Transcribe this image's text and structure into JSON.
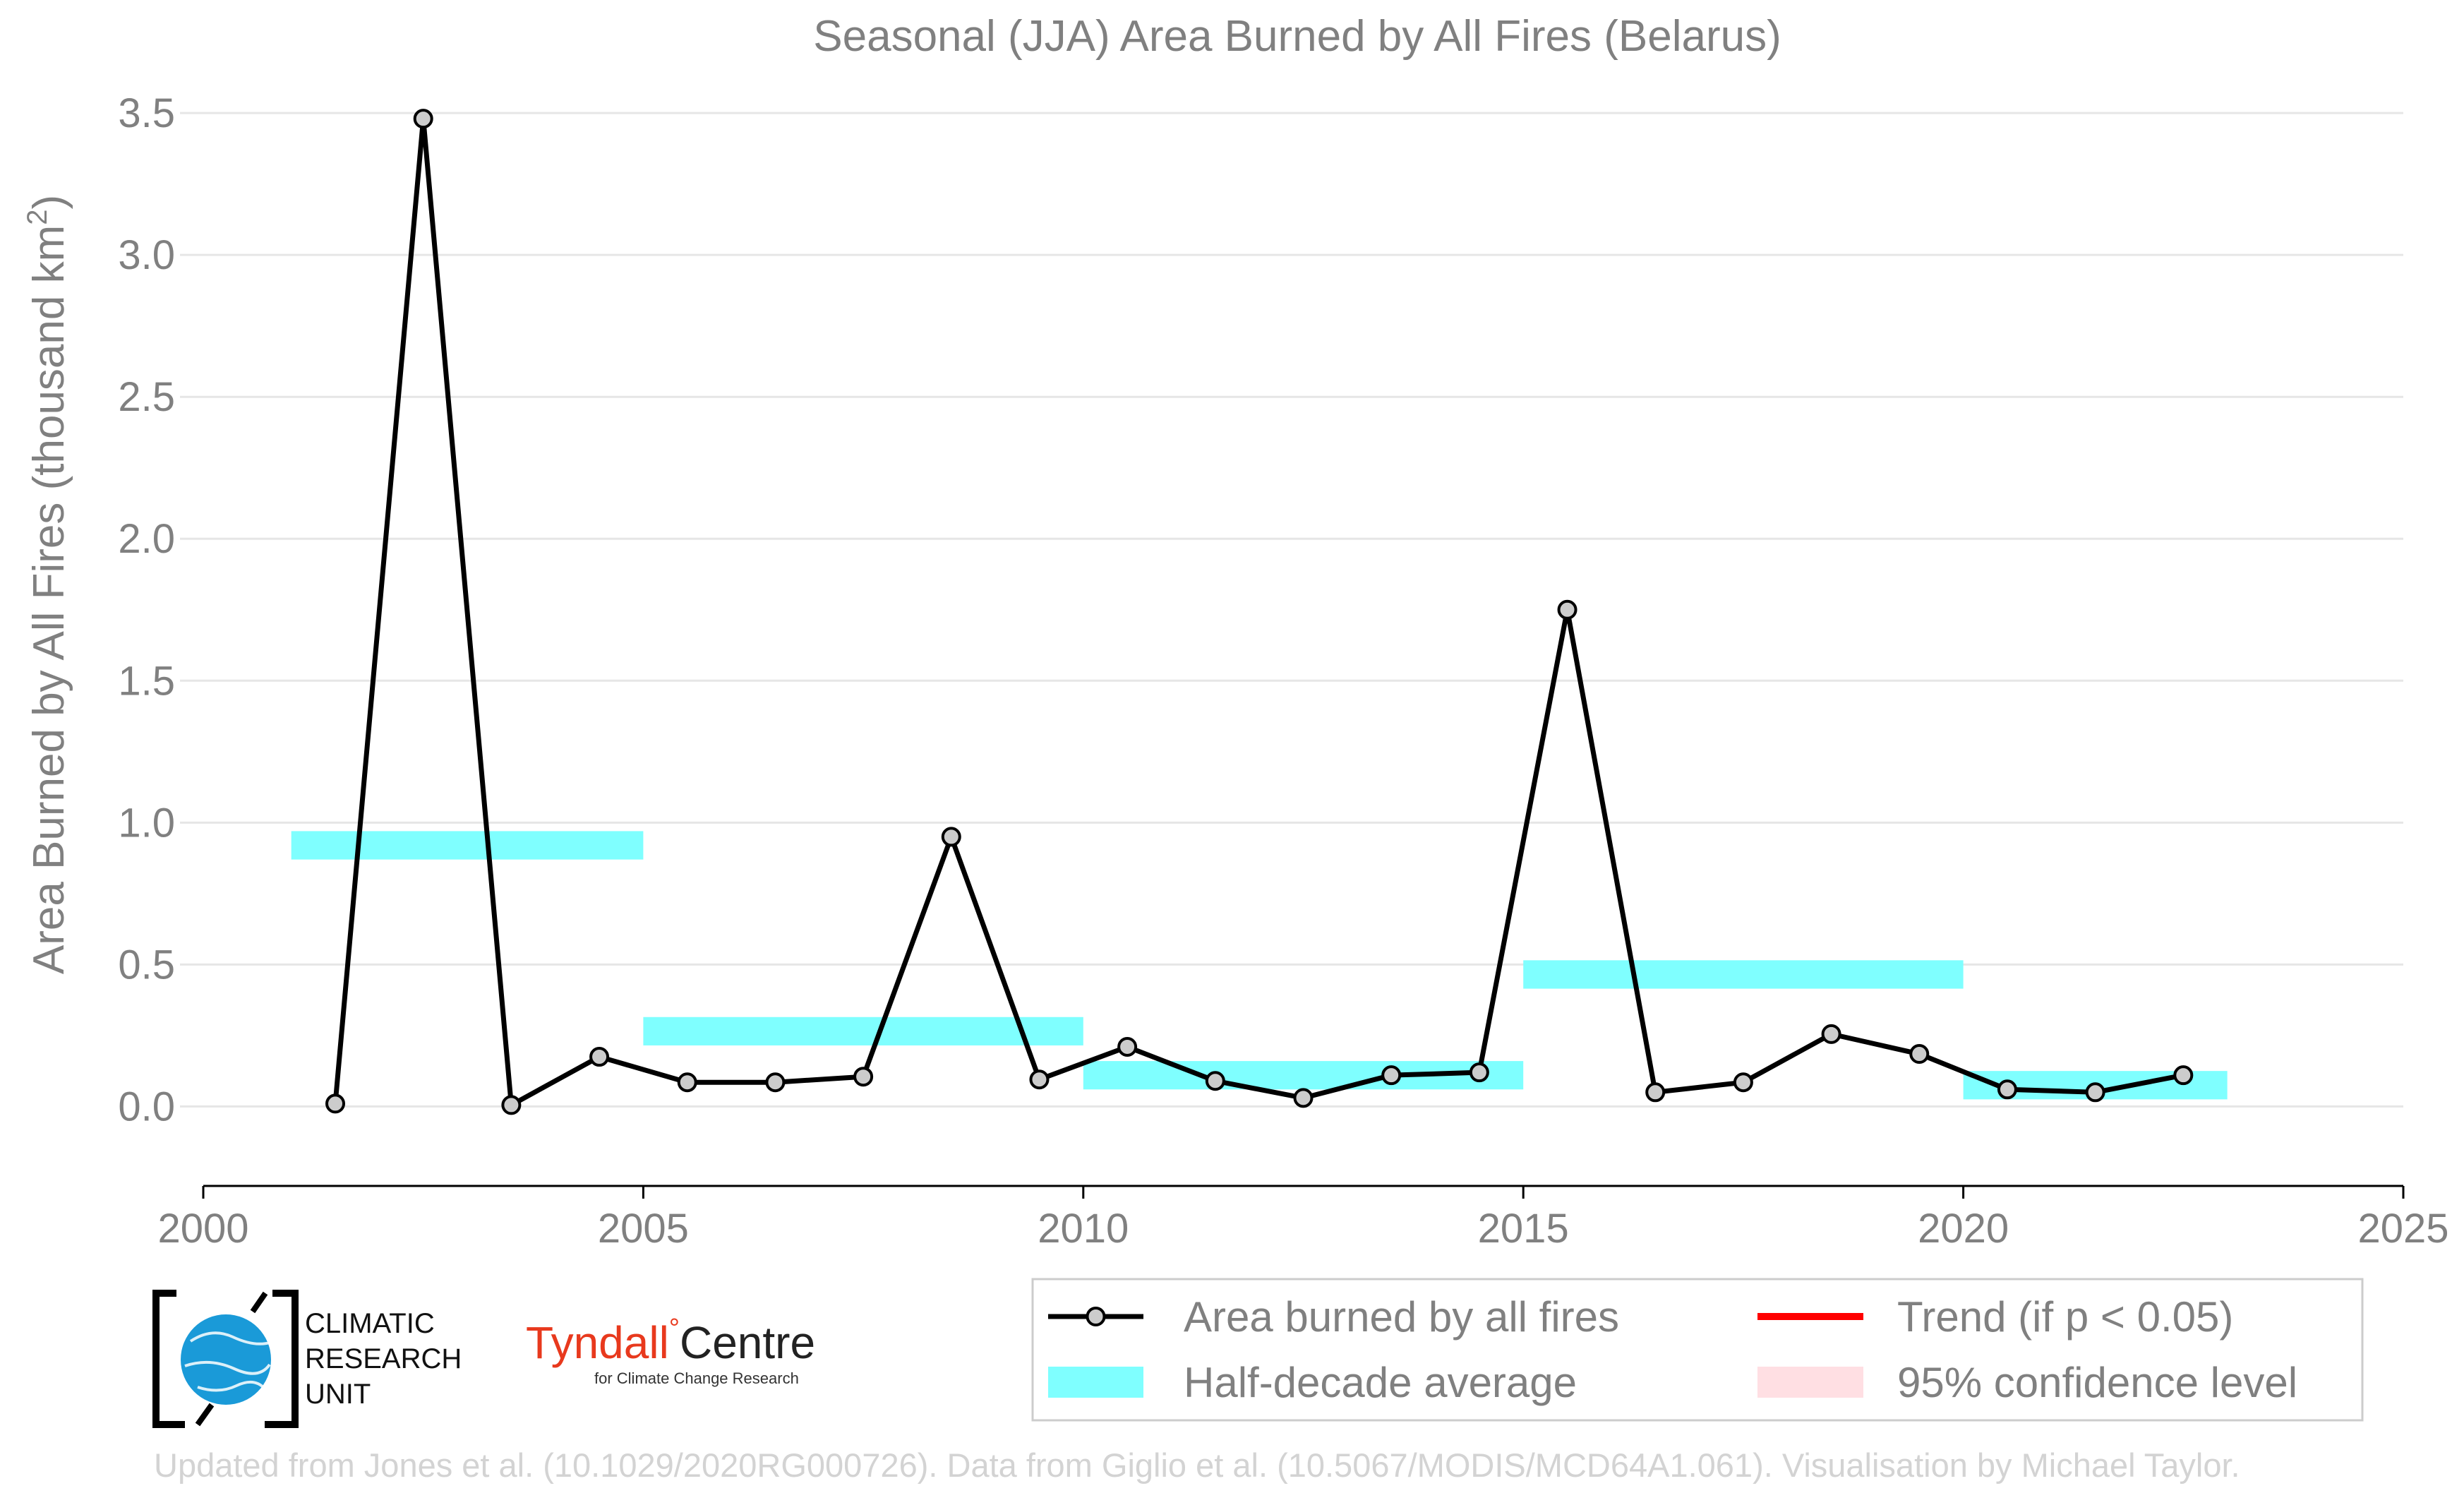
{
  "chart_data": {
    "type": "line",
    "title": "Seasonal (JJA) Area Burned by All Fires (Belarus)",
    "ylabel": "Area Burned by All Fires (thousand km",
    "ylabel_sup": "2",
    "ylabel_close": ")",
    "xlim": [
      2000,
      2025
    ],
    "ylim": [
      -0.28,
      3.55
    ],
    "xticks": [
      2000,
      2005,
      2010,
      2015,
      2020,
      2025
    ],
    "yticks": [
      0.0,
      0.5,
      1.0,
      1.5,
      2.0,
      2.5,
      3.0,
      3.5
    ],
    "xtick_labels": [
      "2000",
      "2005",
      "2010",
      "2015",
      "2020",
      "2025"
    ],
    "ytick_labels": [
      "0.0",
      "0.5",
      "1.0",
      "1.5",
      "2.0",
      "2.5",
      "3.0",
      "3.5"
    ],
    "grid": "horizontal",
    "series": [
      {
        "name": "Area burned by all fires",
        "color": "#000000",
        "marker_fill": "#cccccc",
        "x": [
          2001.5,
          2002.5,
          2003.5,
          2004.5,
          2005.5,
          2006.5,
          2007.5,
          2008.5,
          2009.5,
          2010.5,
          2011.5,
          2012.5,
          2013.5,
          2014.5,
          2015.5,
          2016.5,
          2017.5,
          2018.5,
          2019.5,
          2020.5,
          2021.5,
          2022.5
        ],
        "y": [
          0.01,
          3.48,
          0.005,
          0.175,
          0.085,
          0.085,
          0.105,
          0.95,
          0.095,
          0.21,
          0.09,
          0.03,
          0.11,
          0.12,
          1.75,
          0.05,
          0.085,
          0.255,
          0.185,
          0.06,
          0.05,
          0.11
        ]
      }
    ],
    "half_decade_average": {
      "name": "Half-decade average",
      "color": "#7fffff",
      "band_height": 0.1,
      "segments": [
        {
          "x0": 2001,
          "x1": 2005,
          "y": 0.92
        },
        {
          "x0": 2005,
          "x1": 2010,
          "y": 0.265
        },
        {
          "x0": 2010,
          "x1": 2015,
          "y": 0.11
        },
        {
          "x0": 2015,
          "x1": 2020,
          "y": 0.465
        },
        {
          "x0": 2020,
          "x1": 2023,
          "y": 0.075
        }
      ]
    },
    "legend": {
      "placement": "bottom-right",
      "entries": [
        {
          "label": "Area burned by all fires",
          "kind": "line-marker",
          "color": "#000000"
        },
        {
          "label": "Trend (if p < 0.05)",
          "kind": "line",
          "color": "#ff0000"
        },
        {
          "label": "Half-decade average",
          "kind": "band",
          "color": "#7fffff"
        },
        {
          "label": "95% confidence level",
          "kind": "band",
          "color": "#ffdfe3"
        }
      ]
    }
  },
  "logos": {
    "cru_line1": "CLIMATIC",
    "cru_line2": "RESEARCH",
    "cru_line3": "UNIT",
    "tyndall_name": "Tyndall",
    "tyndall_degree": "°",
    "tyndall_centre": "Centre",
    "tyndall_sub": "for Climate Change Research"
  },
  "footer": "Updated from Jones et al. (10.1029/2020RG000726). Data from Giglio et al. (10.5067/MODIS/MCD64A1.061). Visualisation by Michael Taylor."
}
